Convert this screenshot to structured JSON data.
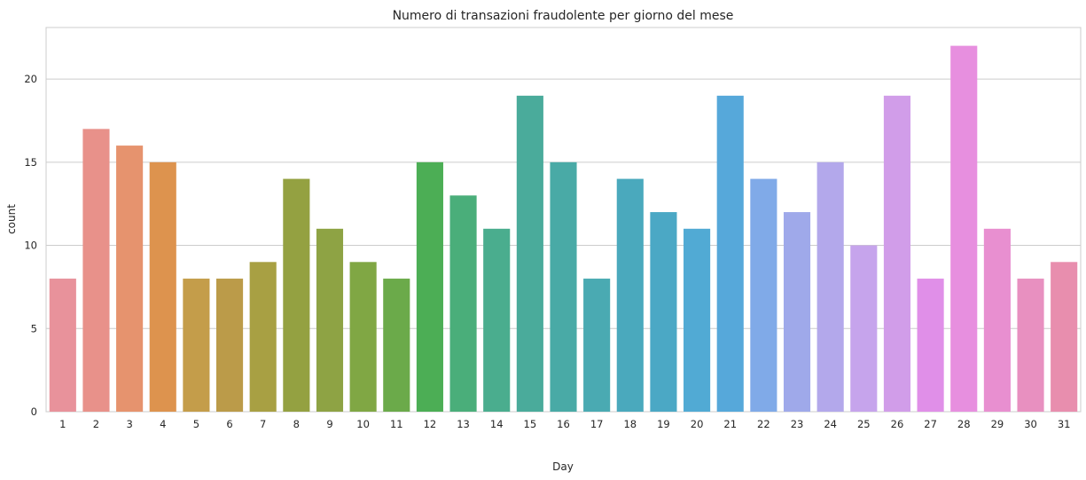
{
  "chart_data": {
    "type": "bar",
    "title": "Numero di transazioni fraudolente per giorno del mese",
    "xlabel": "Day",
    "ylabel": "count",
    "ylim": [
      0,
      23.1
    ],
    "yticks": [
      0,
      5,
      10,
      15,
      20
    ],
    "grid": true,
    "categories": [
      "1",
      "2",
      "3",
      "4",
      "5",
      "6",
      "7",
      "8",
      "9",
      "10",
      "11",
      "12",
      "13",
      "14",
      "15",
      "16",
      "17",
      "18",
      "19",
      "20",
      "21",
      "22",
      "23",
      "24",
      "25",
      "26",
      "27",
      "28",
      "29",
      "30",
      "31"
    ],
    "values": [
      8,
      17,
      16,
      15,
      8,
      8,
      9,
      14,
      11,
      9,
      8,
      15,
      13,
      11,
      19,
      15,
      8,
      14,
      12,
      11,
      19,
      14,
      12,
      15,
      10,
      19,
      8,
      22,
      11,
      8,
      9
    ],
    "colors": [
      "#e8929b",
      "#e8918a",
      "#e6936e",
      "#dd934e",
      "#c49d4a",
      "#bb9b49",
      "#a8a043",
      "#94a141",
      "#8ea344",
      "#80a744",
      "#6baa4a",
      "#4cae55",
      "#4aae7a",
      "#4aad8e",
      "#4aab9b",
      "#49aaa6",
      "#4aaab2",
      "#4aa9bd",
      "#4ba8c5",
      "#51aad4",
      "#56a8da",
      "#80aae8",
      "#9fa9ea",
      "#b3a8eb",
      "#c6a4ec",
      "#d19de9",
      "#e08fe8",
      "#e78fdf",
      "#e88fd0",
      "#e890c0",
      "#e88eae"
    ]
  }
}
